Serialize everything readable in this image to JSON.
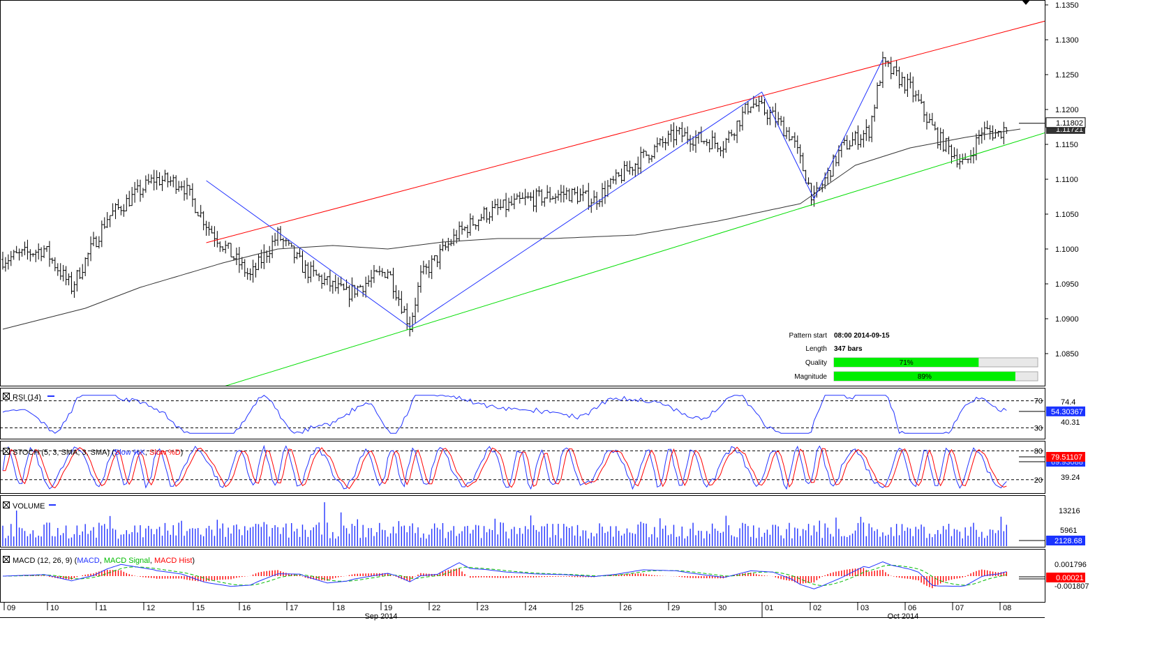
{
  "chart_data": {
    "type": "candlestick",
    "main": {
      "price_axis": [
        "1.1350",
        "1.1300",
        "1.1250",
        "1.1200",
        "1.1150",
        "1.1100",
        "1.1050",
        "1.1000",
        "1.0950",
        "1.0900",
        "1.0850"
      ],
      "ylim": [
        1.08,
        1.135
      ],
      "last_price": "1.11802",
      "ma_value": "1.11721",
      "price_path": [
        [
          0,
          1.0985
        ],
        [
          15,
          1.1
        ],
        [
          25,
          1.0945
        ],
        [
          38,
          1.1045
        ],
        [
          55,
          1.11
        ],
        [
          65,
          1.1095
        ],
        [
          75,
          1.103
        ],
        [
          90,
          1.096
        ],
        [
          100,
          1.102
        ],
        [
          110,
          1.097
        ],
        [
          125,
          1.0935
        ],
        [
          140,
          1.097
        ],
        [
          148,
          1.089
        ],
        [
          152,
          1.096
        ],
        [
          165,
          1.102
        ],
        [
          175,
          1.105
        ],
        [
          190,
          1.107
        ],
        [
          205,
          1.108
        ],
        [
          215,
          1.107
        ],
        [
          232,
          1.113
        ],
        [
          245,
          1.1165
        ],
        [
          262,
          1.115
        ],
        [
          272,
          1.121
        ],
        [
          280,
          1.119
        ],
        [
          287,
          1.116
        ],
        [
          295,
          1.107
        ],
        [
          305,
          1.1145
        ],
        [
          315,
          1.117
        ],
        [
          320,
          1.1265
        ],
        [
          330,
          1.123
        ],
        [
          340,
          1.116
        ],
        [
          350,
          1.112
        ],
        [
          356,
          1.117
        ],
        [
          362,
          1.1165
        ],
        [
          366,
          1.118
        ]
      ],
      "ma_path": [
        [
          0,
          1.0885
        ],
        [
          30,
          1.0915
        ],
        [
          50,
          1.0945
        ],
        [
          80,
          1.098
        ],
        [
          100,
          1.1
        ],
        [
          120,
          1.1005
        ],
        [
          140,
          1.1
        ],
        [
          160,
          1.101
        ],
        [
          180,
          1.1015
        ],
        [
          200,
          1.1015
        ],
        [
          230,
          1.102
        ],
        [
          260,
          1.104
        ],
        [
          290,
          1.1065
        ],
        [
          310,
          1.112
        ],
        [
          330,
          1.1145
        ],
        [
          350,
          1.116
        ],
        [
          370,
          1.1172
        ]
      ],
      "zigzag": [
        [
          74,
          1.1098
        ],
        [
          148,
          1.0888
        ],
        [
          276,
          1.1225
        ],
        [
          295,
          1.1072
        ],
        [
          320,
          1.1272
        ]
      ],
      "resistance": [
        [
          74,
          1.1009
        ],
        [
          370,
          1.1328
        ]
      ],
      "support": [
        [
          78,
          1.08
        ],
        [
          370,
          1.1168
        ]
      ]
    },
    "pattern_info": {
      "pattern_start_label": "Pattern start",
      "pattern_start": "08:00 2014-09-15",
      "length_label": "Length",
      "length": "347 bars",
      "quality_label": "Quality",
      "quality": "71%",
      "quality_value": 0.71,
      "magnitude_label": "Magnitude",
      "magnitude": "89%",
      "magnitude_value": 0.89
    },
    "rsi": {
      "title": "RSI (14)",
      "levels": [
        "70",
        "30"
      ],
      "axis_labels": [
        "74.4",
        "40.31"
      ],
      "current": "54.30367",
      "ylim": [
        15,
        85
      ]
    },
    "stoch": {
      "title_prefix": "STOCH (5, 3, SMA, 3, SMA)",
      "slow_k": "Slow %K",
      "slow_d": "Slow %D",
      "levels": [
        "80",
        "20"
      ],
      "axis_labels": [
        "39.24"
      ],
      "current": "79.51107",
      "current_secondary": "69.93088",
      "ylim": [
        0,
        100
      ]
    },
    "volume": {
      "title": "VOLUME",
      "axis_labels": [
        "13216",
        "5961"
      ],
      "current": "2128.68"
    },
    "macd": {
      "title_prefix": "MACD (12, 26, 9)",
      "macd_label": "MACD",
      "signal_label": "MACD Signal",
      "hist_label": "MACD Hist",
      "axis_labels": [
        "0.001796",
        "-0.001807"
      ],
      "current": "0.00021"
    },
    "x_axis": {
      "day_labels": [
        "09",
        "10",
        "11",
        "12",
        "15",
        "16",
        "17",
        "18",
        "19",
        "22",
        "23",
        "24",
        "25",
        "26",
        "29",
        "30",
        "01",
        "02",
        "03",
        "06",
        "07",
        "08"
      ],
      "month_labels": [
        "Sep 2014",
        "Oct 2014"
      ]
    },
    "colors": {
      "bars": "#000000",
      "ma": "#333333",
      "resistance": "#ff0000",
      "support": "#00dd00",
      "zigzag": "#2233ff",
      "rsi": "#2233ff",
      "stoch_k": "#2233ff",
      "stoch_d": "#ff0000",
      "volume": "#2233ff",
      "macd": "#2233ff",
      "macd_signal": "#00bb00",
      "macd_hist": "#ff0000",
      "progress": "#00ee00",
      "current_box": "#1a33ff",
      "red_box": "#ff0000"
    }
  }
}
